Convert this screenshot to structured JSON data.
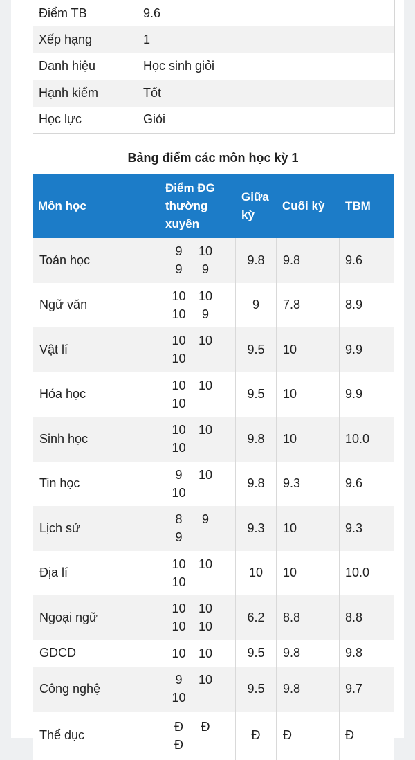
{
  "summary": [
    {
      "label": "Điểm TB",
      "value": "9.6"
    },
    {
      "label": "Xếp hạng",
      "value": "1"
    },
    {
      "label": "Danh hiệu",
      "value": "Học sinh giỏi"
    },
    {
      "label": "Hạnh kiểm",
      "value": "Tốt"
    },
    {
      "label": "Học lực",
      "value": "Giỏi"
    }
  ],
  "caption": "Bảng điểm các môn học kỳ 1",
  "headers": {
    "subject": "Môn học",
    "regular": "Điểm ĐG thường xuyên",
    "midterm": "Giữa kỳ",
    "final": "Cuối kỳ",
    "avg": "TBM"
  },
  "rows": [
    {
      "subject": "Toán học",
      "scores": [
        "9",
        "10",
        "9",
        "9"
      ],
      "midterm": "9.8",
      "final": "9.8",
      "avg": "9.6"
    },
    {
      "subject": "Ngữ văn",
      "scores": [
        "10",
        "10",
        "10",
        "9"
      ],
      "midterm": "9",
      "final": "7.8",
      "avg": "8.9"
    },
    {
      "subject": "Vật lí",
      "scores": [
        "10",
        "10",
        "10"
      ],
      "midterm": "9.5",
      "final": "10",
      "avg": "9.9"
    },
    {
      "subject": "Hóa học",
      "scores": [
        "10",
        "10",
        "10"
      ],
      "midterm": "9.5",
      "final": "10",
      "avg": "9.9"
    },
    {
      "subject": "Sinh học",
      "scores": [
        "10",
        "10",
        "10"
      ],
      "midterm": "9.8",
      "final": "10",
      "avg": "10.0"
    },
    {
      "subject": "Tin học",
      "scores": [
        "9",
        "10",
        "10"
      ],
      "midterm": "9.8",
      "final": "9.3",
      "avg": "9.6"
    },
    {
      "subject": "Lịch sử",
      "scores": [
        "8",
        "9",
        "9"
      ],
      "midterm": "9.3",
      "final": "10",
      "avg": "9.3"
    },
    {
      "subject": "Địa lí",
      "scores": [
        "10",
        "10",
        "10"
      ],
      "midterm": "10",
      "final": "10",
      "avg": "10.0"
    },
    {
      "subject": "Ngoại ngữ",
      "scores": [
        "10",
        "10",
        "10",
        "10"
      ],
      "midterm": "6.2",
      "final": "8.8",
      "avg": "8.8"
    },
    {
      "subject": "GDCD",
      "scores": [
        "10",
        "10"
      ],
      "midterm": "9.5",
      "final": "9.8",
      "avg": "9.8"
    },
    {
      "subject": "Công nghệ",
      "scores": [
        "9",
        "10",
        "10"
      ],
      "midterm": "9.5",
      "final": "9.8",
      "avg": "9.7"
    },
    {
      "subject": "Thể dục",
      "scores": [
        "Đ",
        "Đ",
        "Đ"
      ],
      "midterm": "Đ",
      "final": "Đ",
      "avg": "Đ"
    }
  ]
}
